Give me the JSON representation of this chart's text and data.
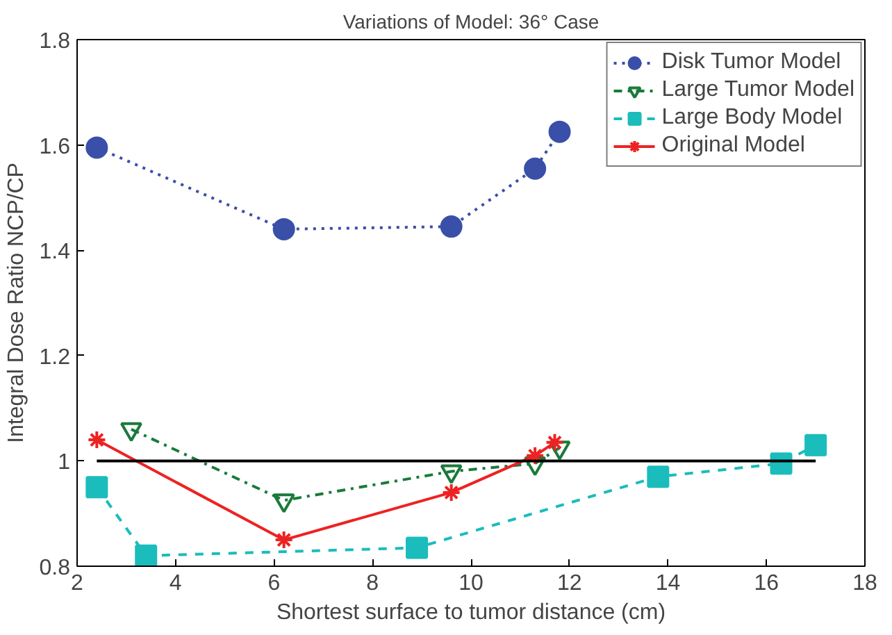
{
  "chart_data": {
    "type": "line",
    "title": "Variations of Model: 36° Case",
    "xlabel": "Shortest surface to tumor distance (cm)",
    "ylabel": "Integral Dose Ratio NCP/CP",
    "xlim": [
      2,
      18
    ],
    "xticks": [
      2,
      4,
      6,
      8,
      10,
      12,
      14,
      16,
      18
    ],
    "ylim": [
      0.8,
      1.8
    ],
    "yticks": [
      0.8,
      1,
      1.2,
      1.4,
      1.6,
      1.8
    ],
    "grid": false,
    "legend": "top right",
    "series": [
      {
        "name": "Disk Tumor Model",
        "color": "#3a4fa8",
        "marker": "circle",
        "line_style": "dotted",
        "x": [
          2.4,
          6.2,
          9.6,
          11.3,
          11.8
        ],
        "values": [
          1.595,
          1.44,
          1.445,
          1.555,
          1.625
        ]
      },
      {
        "name": "Large Tumor Model",
        "color": "#1a7a3a",
        "marker": "triangle",
        "line_style": "dashed",
        "x": [
          3.1,
          6.2,
          9.6,
          11.3,
          11.8
        ],
        "values": [
          1.06,
          0.925,
          0.98,
          0.995,
          1.025
        ]
      },
      {
        "name": "Large Body Model",
        "color": "#1bbcbc",
        "marker": "square",
        "line_style": "dashed",
        "x": [
          2.4,
          3.4,
          8.9,
          13.8,
          16.3,
          17.0
        ],
        "values": [
          0.95,
          0.82,
          0.835,
          0.97,
          0.995,
          1.03
        ]
      },
      {
        "name": "Original Model",
        "color": "#ee2222",
        "marker": "cross",
        "line_style": "solid",
        "x": [
          2.4,
          6.2,
          9.6,
          11.3,
          11.7
        ],
        "values": [
          1.04,
          0.85,
          0.94,
          1.01,
          1.035
        ]
      },
      {
        "color": "#000000",
        "marker": "none",
        "line_style": "solid",
        "x": [
          2.4,
          17.0
        ],
        "values": [
          1.0,
          1.0
        ]
      }
    ]
  }
}
